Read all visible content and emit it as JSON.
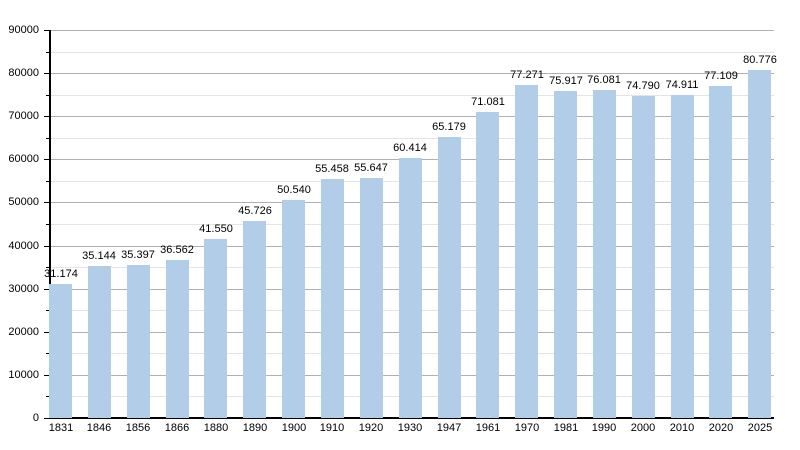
{
  "chart_data": {
    "type": "bar",
    "title": "",
    "xlabel": "",
    "ylabel": "",
    "categories": [
      "1831",
      "1846",
      "1856",
      "1866",
      "1880",
      "1890",
      "1900",
      "1910",
      "1920",
      "1930",
      "1947",
      "1961",
      "1970",
      "1981",
      "1990",
      "2000",
      "2010",
      "2020",
      "2025"
    ],
    "values": [
      31174,
      35144,
      35397,
      36562,
      41550,
      45726,
      50540,
      55458,
      55647,
      60414,
      65179,
      71081,
      77271,
      75917,
      76081,
      74790,
      74911,
      77109,
      80776
    ],
    "value_labels": [
      "31.174",
      "35.144",
      "35.397",
      "36.562",
      "41.550",
      "45.726",
      "50.540",
      "55.458",
      "55.647",
      "60.414",
      "65.179",
      "71.081",
      "77.271",
      "75.917",
      "76.081",
      "74.790",
      "74.911",
      "77.109",
      "80.776"
    ],
    "ylim": [
      0,
      90000
    ],
    "y_major_step": 10000,
    "y_minor_step": 5000,
    "y_tick_labels": [
      "0",
      "10000",
      "20000",
      "30000",
      "40000",
      "50000",
      "60000",
      "70000",
      "80000",
      "90000"
    ],
    "grid": true,
    "legend": "none",
    "colors": {
      "bar": "#b2cde8",
      "major_grid": "#b0b0b0",
      "minor_grid": "#e4e4e4",
      "axis": "#000000",
      "text": "#000000",
      "background": "#ffffff"
    }
  }
}
